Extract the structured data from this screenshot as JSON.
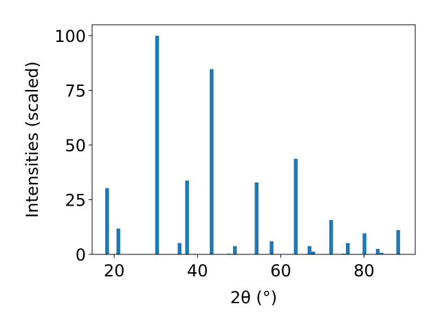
{
  "chart_data": {
    "type": "bar",
    "xlabel": "2θ (°)",
    "ylabel": "Intensities (scaled)",
    "xlim": [
      14.7,
      92.3
    ],
    "ylim": [
      0,
      105
    ],
    "xticks": [
      20,
      40,
      60,
      80
    ],
    "yticks": [
      0,
      25,
      50,
      75,
      100
    ],
    "grid": false,
    "bar_color": "#1f77b4",
    "bar_width_deg": 0.9,
    "x": [
      18.3,
      21.0,
      30.3,
      35.7,
      37.5,
      43.4,
      47.6,
      49.0,
      54.2,
      57.8,
      63.6,
      66.9,
      67.8,
      72.1,
      75.1,
      76.1,
      80.1,
      83.3,
      84.2,
      88.2
    ],
    "values": [
      30.3,
      11.8,
      100.0,
      5.2,
      33.8,
      84.7,
      0.3,
      3.8,
      32.9,
      6.0,
      43.7,
      3.8,
      1.3,
      15.7,
      0.3,
      5.2,
      9.6,
      2.5,
      0.7,
      11.1
    ]
  }
}
